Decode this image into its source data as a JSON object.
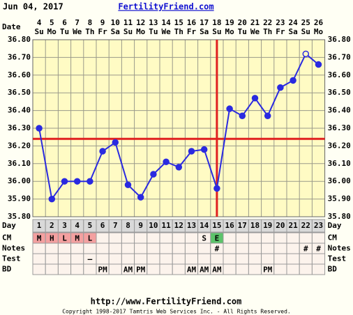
{
  "header": {
    "date": "Jun 04, 2017",
    "site": "FertilityFriend.com"
  },
  "chart_data": {
    "type": "line",
    "date_label": "Date",
    "dates": [
      4,
      5,
      6,
      7,
      8,
      9,
      10,
      11,
      12,
      13,
      14,
      15,
      16,
      17,
      18,
      19,
      20,
      21,
      22,
      23,
      24,
      25,
      26
    ],
    "weekdays": [
      "Su",
      "Mo",
      "Tu",
      "We",
      "Th",
      "Fr",
      "Sa",
      "Su",
      "Mo",
      "Tu",
      "We",
      "Th",
      "Fr",
      "Sa",
      "Su",
      "Mo",
      "Tu",
      "We",
      "Th",
      "Fr",
      "Sa",
      "Su",
      "Mo"
    ],
    "day_label": "Day",
    "days": [
      1,
      2,
      3,
      4,
      5,
      6,
      7,
      8,
      9,
      10,
      11,
      12,
      13,
      14,
      15,
      16,
      17,
      18,
      19,
      20,
      21,
      22,
      23
    ],
    "values": [
      36.3,
      35.9,
      36.0,
      36.0,
      36.0,
      36.17,
      36.22,
      35.98,
      35.91,
      36.04,
      36.11,
      36.08,
      36.17,
      36.18,
      35.96,
      36.41,
      36.37,
      36.47,
      36.37,
      36.53,
      36.57,
      36.72,
      36.66
    ],
    "color": "#2a2ae0",
    "open_point_days": [
      22
    ],
    "coverline": 36.24,
    "ovulation_day": 15,
    "marker_color": "#e02020",
    "plot_background": "#fffbc4",
    "ylim": [
      35.8,
      36.8
    ],
    "yticks": [
      {
        "value": 35.8,
        "label": "35.80"
      },
      {
        "value": 35.9,
        "label": "35.90"
      },
      {
        "value": 36.0,
        "label": "36.00"
      },
      {
        "value": 36.1,
        "label": "36.10"
      },
      {
        "value": 36.2,
        "label": "36.20"
      },
      {
        "value": 36.3,
        "label": "36.30"
      },
      {
        "value": 36.4,
        "label": "36.40"
      },
      {
        "value": 36.5,
        "label": "36.50"
      },
      {
        "value": 36.6,
        "label": "36.60"
      },
      {
        "value": 36.7,
        "label": "36.70"
      },
      {
        "value": 36.8,
        "label": "36.80"
      }
    ],
    "grid": true,
    "rows": {
      "cm": {
        "label": "CM",
        "cells": [
          "M",
          "H",
          "L",
          "M",
          "L",
          null,
          null,
          null,
          null,
          null,
          null,
          null,
          null,
          "S",
          "E",
          null,
          null,
          null,
          null,
          null,
          null,
          null,
          null
        ],
        "fills": {
          "M": "#f4a0a0",
          "H": "#f4a0a0",
          "L": "#f4a0a0",
          "E": "#5cc46a"
        }
      },
      "notes": {
        "label": "Notes",
        "cells": [
          null,
          null,
          null,
          null,
          null,
          null,
          null,
          null,
          null,
          null,
          null,
          null,
          null,
          null,
          "#",
          null,
          null,
          null,
          null,
          null,
          null,
          "#",
          "#"
        ]
      },
      "test": {
        "label": "Test",
        "cells": [
          null,
          null,
          null,
          null,
          "–",
          null,
          null,
          null,
          null,
          null,
          null,
          null,
          null,
          null,
          null,
          null,
          null,
          null,
          null,
          null,
          null,
          null,
          null
        ]
      },
      "bd": {
        "label": "BD",
        "cells": [
          null,
          null,
          null,
          null,
          null,
          "PM",
          null,
          "AM",
          "PM",
          null,
          null,
          null,
          "AM",
          "AM",
          "AM",
          null,
          null,
          null,
          "PM",
          null,
          null,
          null,
          null
        ]
      }
    }
  },
  "footer": {
    "url": "http://www.FertilityFriend.com",
    "copyright": "Copyright 1998-2017 Tamtris Web Services Inc. - All Rights Reserved."
  }
}
